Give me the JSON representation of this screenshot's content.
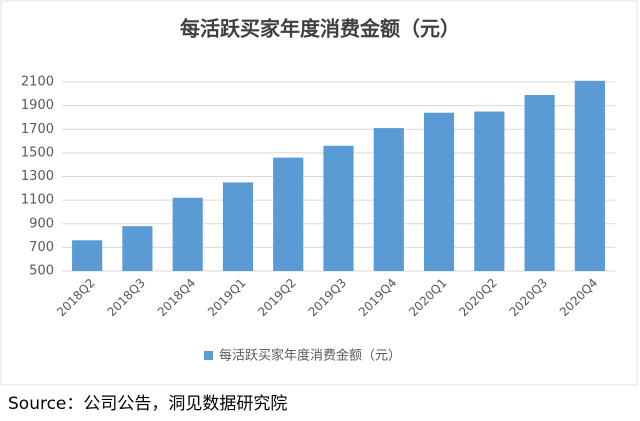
{
  "chart_data": {
    "type": "bar",
    "title": "每活跃买家年度消费金额（元）",
    "categories": [
      "2018Q2",
      "2018Q3",
      "2018Q4",
      "2019Q1",
      "2019Q2",
      "2019Q3",
      "2019Q4",
      "2020Q1",
      "2020Q2",
      "2020Q3",
      "2020Q4"
    ],
    "series": [
      {
        "name": "每活跃买家年度消费金额（元）",
        "color": "#5b9bd5",
        "values": [
          760,
          880,
          1120,
          1250,
          1460,
          1560,
          1710,
          1840,
          1850,
          1990,
          2110
        ]
      }
    ],
    "ylim": [
      500,
      2100
    ],
    "yticks": [
      500,
      700,
      900,
      1100,
      1300,
      1500,
      1700,
      1900,
      2100
    ],
    "grid": true,
    "legend": "bottom"
  },
  "source": "Source：公司公告，洞见数据研究院"
}
